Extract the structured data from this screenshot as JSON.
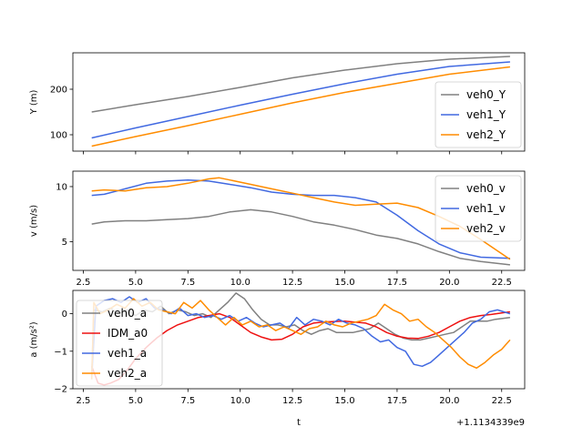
{
  "chart_data": [
    {
      "type": "line",
      "ylabel": "Y (m)",
      "xlim": [
        2.0,
        23.6
      ],
      "ylim": [
        64,
        280
      ],
      "x_ticks": [
        2.5,
        5.0,
        7.5,
        10.0,
        12.5,
        15.0,
        17.5,
        20.0,
        22.5
      ],
      "x_tick_labels": [],
      "y_ticks": [
        100,
        200
      ],
      "y_tick_labels": [
        "100",
        "200"
      ],
      "legend_position": "lower-right",
      "series": [
        {
          "name": "veh0_Y",
          "color": "#808080",
          "x": [
            2.9,
            5,
            7.5,
            10,
            12.5,
            15,
            17.5,
            20,
            22.9
          ],
          "y": [
            150,
            166,
            184,
            204,
            225,
            242,
            256,
            266,
            272
          ]
        },
        {
          "name": "veh1_Y",
          "color": "#4169e1",
          "x": [
            2.9,
            5,
            7.5,
            10,
            12.5,
            15,
            17.5,
            20,
            22.9
          ],
          "y": [
            93,
            115,
            140,
            165,
            189,
            212,
            233,
            250,
            260
          ]
        },
        {
          "name": "veh2_Y",
          "color": "#ff8c00",
          "x": [
            2.9,
            5,
            7.5,
            10,
            12.5,
            15,
            17.5,
            20,
            22.9
          ],
          "y": [
            75,
            96,
            120,
            145,
            170,
            193,
            213,
            233,
            249
          ]
        }
      ]
    },
    {
      "type": "line",
      "ylabel": "v (m/s)",
      "xlim": [
        2.0,
        23.6
      ],
      "ylim": [
        2.4,
        11.4
      ],
      "x_ticks": [
        2.5,
        5.0,
        7.5,
        10.0,
        12.5,
        15.0,
        17.5,
        20.0,
        22.5
      ],
      "x_tick_labels": [
        "2.5",
        "5.0",
        "7.5",
        "10.0",
        "12.5",
        "15.0",
        "17.5",
        "20.0",
        "22.5"
      ],
      "y_ticks": [
        5,
        10
      ],
      "y_tick_labels": [
        "5",
        "10"
      ],
      "legend_position": "upper-right",
      "series": [
        {
          "name": "veh0_v",
          "color": "#808080",
          "x": [
            2.9,
            3.5,
            4.5,
            5.5,
            6.5,
            7.5,
            8.5,
            9.5,
            10.5,
            11.5,
            12.5,
            13.5,
            14.5,
            15.5,
            16.5,
            17.5,
            18.5,
            19.5,
            20.5,
            21.5,
            22.9
          ],
          "y": [
            6.6,
            6.8,
            6.9,
            6.9,
            7.0,
            7.1,
            7.3,
            7.7,
            7.9,
            7.7,
            7.3,
            6.8,
            6.5,
            6.1,
            5.6,
            5.3,
            4.8,
            4.1,
            3.5,
            3.2,
            2.9
          ]
        },
        {
          "name": "veh1_v",
          "color": "#4169e1",
          "x": [
            2.9,
            3.5,
            4.5,
            5.5,
            6.5,
            7.5,
            8.5,
            9.5,
            10.5,
            11.5,
            12.5,
            13.5,
            14.5,
            15.5,
            16.5,
            17.5,
            18.5,
            19.5,
            20.5,
            21.5,
            22.9
          ],
          "y": [
            9.2,
            9.3,
            9.8,
            10.3,
            10.5,
            10.6,
            10.5,
            10.2,
            9.9,
            9.5,
            9.3,
            9.2,
            9.2,
            9.0,
            8.6,
            7.4,
            6.0,
            4.8,
            4.0,
            3.6,
            3.5
          ]
        },
        {
          "name": "veh2_v",
          "color": "#ff8c00",
          "x": [
            2.9,
            3.5,
            4.5,
            5.5,
            6.5,
            7.5,
            8.5,
            9.0,
            9.5,
            10.5,
            11.5,
            12.5,
            13.5,
            14.5,
            15.5,
            16.5,
            17.5,
            18.5,
            19.5,
            20.5,
            21.5,
            22.9
          ],
          "y": [
            9.6,
            9.7,
            9.6,
            9.9,
            10.0,
            10.3,
            10.7,
            10.8,
            10.6,
            10.2,
            9.8,
            9.4,
            9.0,
            8.6,
            8.3,
            8.4,
            8.5,
            8.1,
            7.3,
            6.4,
            5.2,
            3.4
          ]
        }
      ]
    },
    {
      "type": "line",
      "ylabel": "a (m/s²)",
      "xlabel": "t",
      "offset_text": "+1.1134339e9",
      "xlim": [
        2.0,
        23.6
      ],
      "ylim": [
        -2.0,
        0.62
      ],
      "x_ticks": [
        2.5,
        5.0,
        7.5,
        10.0,
        12.5,
        15.0,
        17.5,
        20.0,
        22.5
      ],
      "x_tick_labels": [
        "2.5",
        "5.0",
        "7.5",
        "10.0",
        "12.5",
        "15.0",
        "17.5",
        "20.0",
        "22.5"
      ],
      "y_ticks": [
        -2,
        -1,
        0
      ],
      "y_tick_labels": [
        "−2",
        "−1",
        "0"
      ],
      "legend_position": "upper-left",
      "series": [
        {
          "name": "veh0_a",
          "color": "#808080",
          "x": [
            2.9,
            3.0,
            3.4,
            3.8,
            4.2,
            4.6,
            5.0,
            5.4,
            5.8,
            6.2,
            6.6,
            7.0,
            7.4,
            7.8,
            8.2,
            8.6,
            9.0,
            9.4,
            9.8,
            10.2,
            10.6,
            11.0,
            11.4,
            11.8,
            12.2,
            12.6,
            13.0,
            13.4,
            13.8,
            14.2,
            14.6,
            15.0,
            15.4,
            15.8,
            16.2,
            16.6,
            17.0,
            17.4,
            17.8,
            18.2,
            18.6,
            19.0,
            19.4,
            19.8,
            20.2,
            20.6,
            21.0,
            21.4,
            21.8,
            22.2,
            22.9
          ],
          "y": [
            -1.6,
            0.1,
            0.05,
            0.15,
            0.0,
            0.1,
            -0.05,
            0.1,
            0.05,
            0.2,
            0.0,
            0.1,
            0.05,
            -0.05,
            0.0,
            -0.1,
            0.1,
            0.3,
            0.55,
            0.4,
            0.1,
            -0.15,
            -0.3,
            -0.3,
            -0.35,
            -0.3,
            -0.45,
            -0.55,
            -0.45,
            -0.4,
            -0.5,
            -0.5,
            -0.5,
            -0.45,
            -0.4,
            -0.25,
            -0.4,
            -0.55,
            -0.65,
            -0.7,
            -0.7,
            -0.65,
            -0.6,
            -0.55,
            -0.5,
            -0.35,
            -0.2,
            -0.2,
            -0.2,
            -0.15,
            -0.1
          ]
        },
        {
          "name": "IDM_a0",
          "color": "#ee1111",
          "x": [
            2.9,
            3.2,
            3.5,
            3.8,
            4.2,
            4.6,
            5.0,
            5.5,
            6.0,
            6.5,
            7.0,
            7.5,
            8.0,
            8.5,
            9.0,
            9.5,
            10.0,
            10.5,
            11.0,
            11.5,
            12.0,
            12.5,
            13.0,
            13.5,
            14.0,
            15.0,
            16.0,
            16.5,
            17.0,
            17.5,
            18.0,
            18.5,
            19.0,
            19.5,
            20.0,
            20.5,
            21.0,
            21.5,
            22.0,
            22.5,
            22.9
          ],
          "y": [
            -1.4,
            -1.85,
            -1.9,
            -1.85,
            -1.75,
            -1.5,
            -1.2,
            -0.9,
            -0.65,
            -0.45,
            -0.3,
            -0.2,
            -0.1,
            -0.05,
            0.0,
            -0.1,
            -0.3,
            -0.5,
            -0.62,
            -0.7,
            -0.68,
            -0.55,
            -0.35,
            -0.25,
            -0.22,
            -0.2,
            -0.25,
            -0.35,
            -0.5,
            -0.6,
            -0.65,
            -0.66,
            -0.6,
            -0.5,
            -0.35,
            -0.2,
            -0.1,
            -0.05,
            -0.02,
            0.02,
            0.05
          ]
        },
        {
          "name": "veh1_a",
          "color": "#4169e1",
          "x": [
            2.9,
            3.1,
            3.5,
            3.9,
            4.3,
            4.7,
            5.1,
            5.5,
            5.9,
            6.3,
            6.7,
            7.1,
            7.5,
            7.9,
            8.3,
            8.7,
            9.1,
            9.5,
            9.9,
            10.3,
            10.7,
            11.1,
            11.5,
            11.9,
            12.3,
            12.7,
            13.1,
            13.5,
            13.9,
            14.3,
            14.7,
            15.1,
            15.5,
            15.9,
            16.3,
            16.7,
            17.1,
            17.5,
            17.9,
            18.3,
            18.7,
            19.1,
            19.5,
            19.9,
            20.3,
            20.7,
            21.1,
            21.5,
            21.9,
            22.3,
            22.9
          ],
          "y": [
            -1.7,
            0.2,
            0.35,
            0.4,
            0.3,
            0.45,
            0.3,
            0.4,
            0.15,
            0.1,
            0.0,
            0.15,
            -0.05,
            0.0,
            -0.1,
            -0.05,
            -0.15,
            -0.05,
            -0.2,
            -0.1,
            -0.25,
            -0.35,
            -0.3,
            -0.25,
            -0.4,
            -0.1,
            -0.3,
            -0.15,
            -0.2,
            -0.3,
            -0.15,
            -0.25,
            -0.3,
            -0.4,
            -0.6,
            -0.75,
            -0.7,
            -0.9,
            -1.0,
            -1.35,
            -1.4,
            -1.3,
            -1.1,
            -0.9,
            -0.7,
            -0.5,
            -0.25,
            -0.15,
            0.05,
            0.1,
            0.0
          ]
        },
        {
          "name": "veh2_a",
          "color": "#ff8c00",
          "x": [
            2.9,
            3.0,
            3.3,
            3.7,
            4.1,
            4.5,
            4.9,
            5.3,
            5.7,
            6.1,
            6.5,
            6.9,
            7.3,
            7.7,
            8.1,
            8.5,
            8.9,
            9.3,
            9.7,
            10.1,
            10.5,
            10.9,
            11.3,
            11.7,
            12.1,
            12.5,
            12.9,
            13.3,
            13.7,
            14.1,
            14.5,
            14.9,
            15.3,
            15.7,
            16.1,
            16.5,
            16.9,
            17.3,
            17.7,
            18.1,
            18.5,
            18.9,
            19.3,
            19.7,
            20.1,
            20.5,
            20.9,
            21.3,
            21.7,
            22.1,
            22.5,
            22.9
          ],
          "y": [
            -1.75,
            0.3,
            0.0,
            0.1,
            0.25,
            0.15,
            0.4,
            0.2,
            0.3,
            0.1,
            0.05,
            0.0,
            0.3,
            0.15,
            0.35,
            0.1,
            -0.1,
            -0.3,
            -0.1,
            -0.3,
            -0.2,
            -0.35,
            -0.3,
            -0.45,
            -0.35,
            -0.45,
            -0.55,
            -0.4,
            -0.35,
            -0.2,
            -0.3,
            -0.35,
            -0.25,
            -0.2,
            -0.15,
            -0.05,
            0.25,
            0.1,
            0.0,
            -0.2,
            -0.15,
            -0.35,
            -0.5,
            -0.7,
            -0.9,
            -1.15,
            -1.35,
            -1.45,
            -1.3,
            -1.1,
            -0.95,
            -0.7
          ]
        }
      ]
    }
  ]
}
